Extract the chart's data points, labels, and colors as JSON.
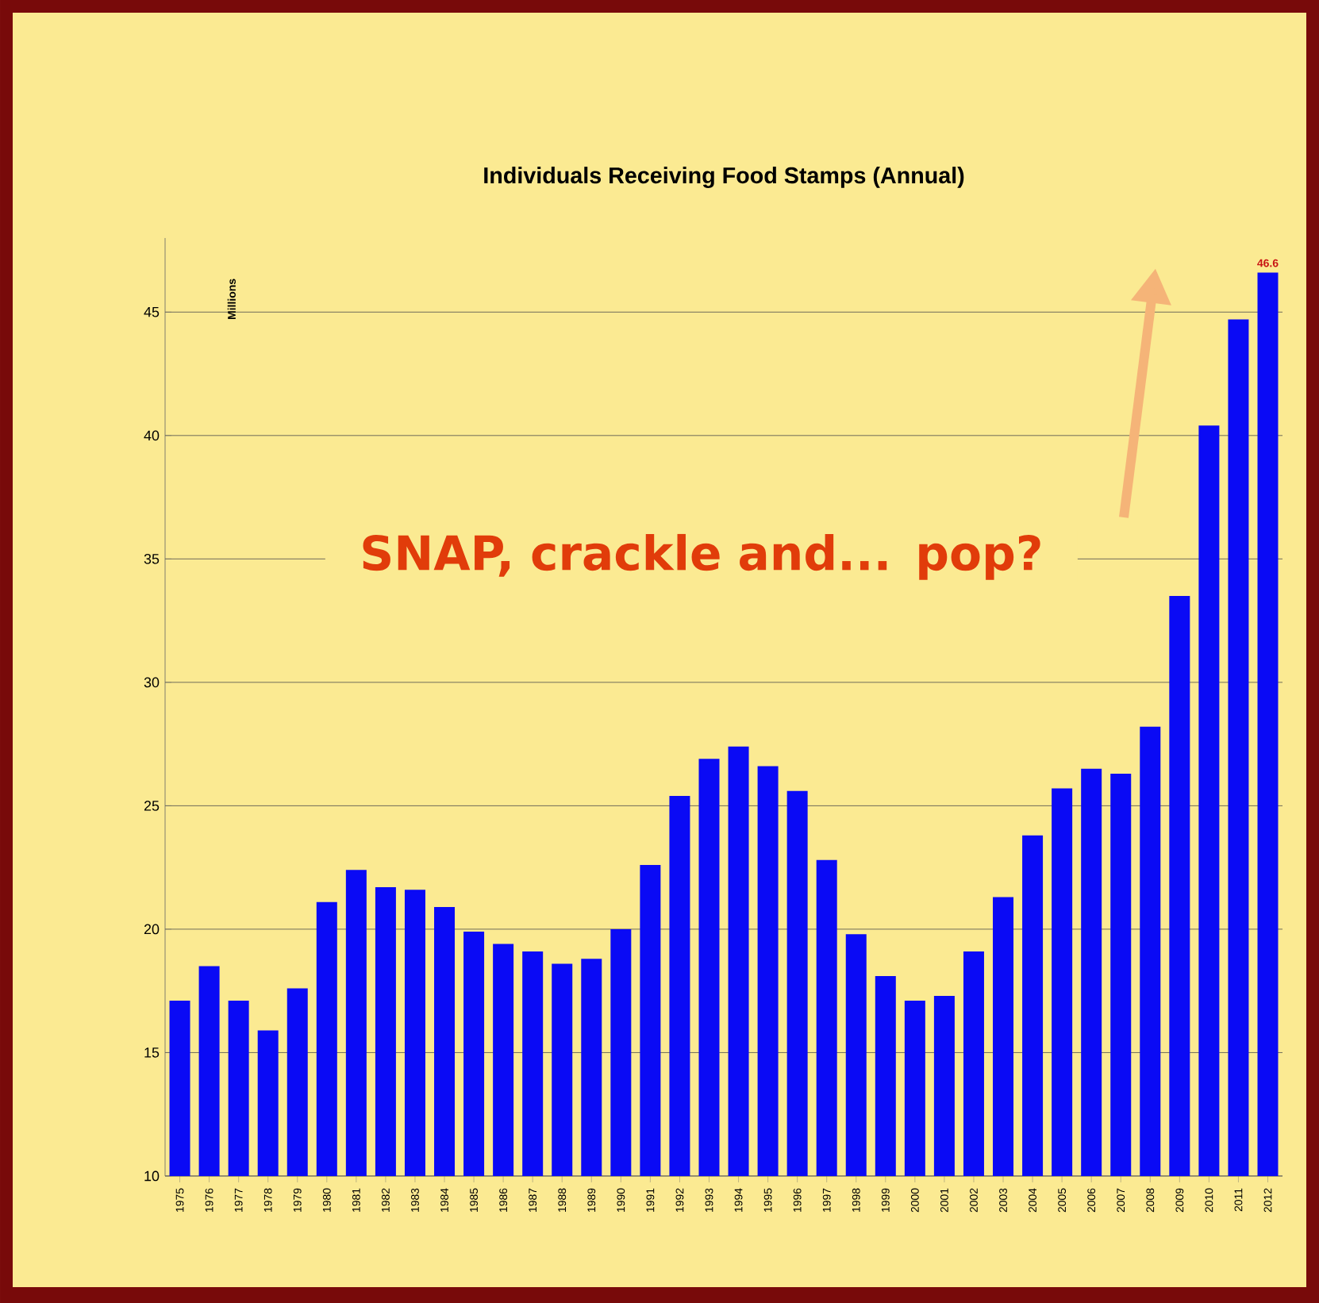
{
  "chart_data": {
    "type": "bar",
    "title": "Individuals Receiving Food Stamps (Annual)",
    "ylabel": "Millions",
    "annotations": [
      "SNAP, crackle and... pop?"
    ],
    "categories": [
      "1975",
      "1976",
      "1977",
      "1978",
      "1979",
      "1980",
      "1981",
      "1982",
      "1983",
      "1984",
      "1985",
      "1986",
      "1987",
      "1988",
      "1989",
      "1990",
      "1991",
      "1992",
      "1993",
      "1994",
      "1995",
      "1996",
      "1997",
      "1998",
      "1999",
      "2000",
      "2001",
      "2002",
      "2003",
      "2004",
      "2005",
      "2006",
      "2007",
      "2008",
      "2009",
      "2010",
      "2011",
      "2012"
    ],
    "values": [
      17.1,
      18.5,
      17.1,
      15.9,
      17.6,
      21.1,
      22.4,
      21.7,
      21.6,
      20.9,
      19.9,
      19.4,
      19.1,
      18.6,
      18.8,
      20.0,
      22.6,
      25.4,
      26.9,
      27.4,
      26.6,
      25.6,
      22.8,
      19.8,
      18.1,
      17.1,
      17.3,
      19.1,
      21.3,
      23.8,
      25.7,
      26.5,
      26.3,
      28.2,
      33.5,
      40.4,
      44.7,
      46.6
    ],
    "value_labels": [
      null,
      null,
      null,
      null,
      null,
      null,
      null,
      null,
      null,
      null,
      null,
      null,
      null,
      null,
      null,
      null,
      null,
      null,
      null,
      null,
      null,
      null,
      null,
      null,
      null,
      null,
      null,
      null,
      null,
      null,
      null,
      null,
      null,
      null,
      null,
      null,
      null,
      "46.6"
    ],
    "color": "#0a0af5",
    "ylim": [
      10,
      48
    ],
    "yticks": [
      10,
      15,
      20,
      25,
      30,
      35,
      40,
      45
    ],
    "grid": "y"
  }
}
